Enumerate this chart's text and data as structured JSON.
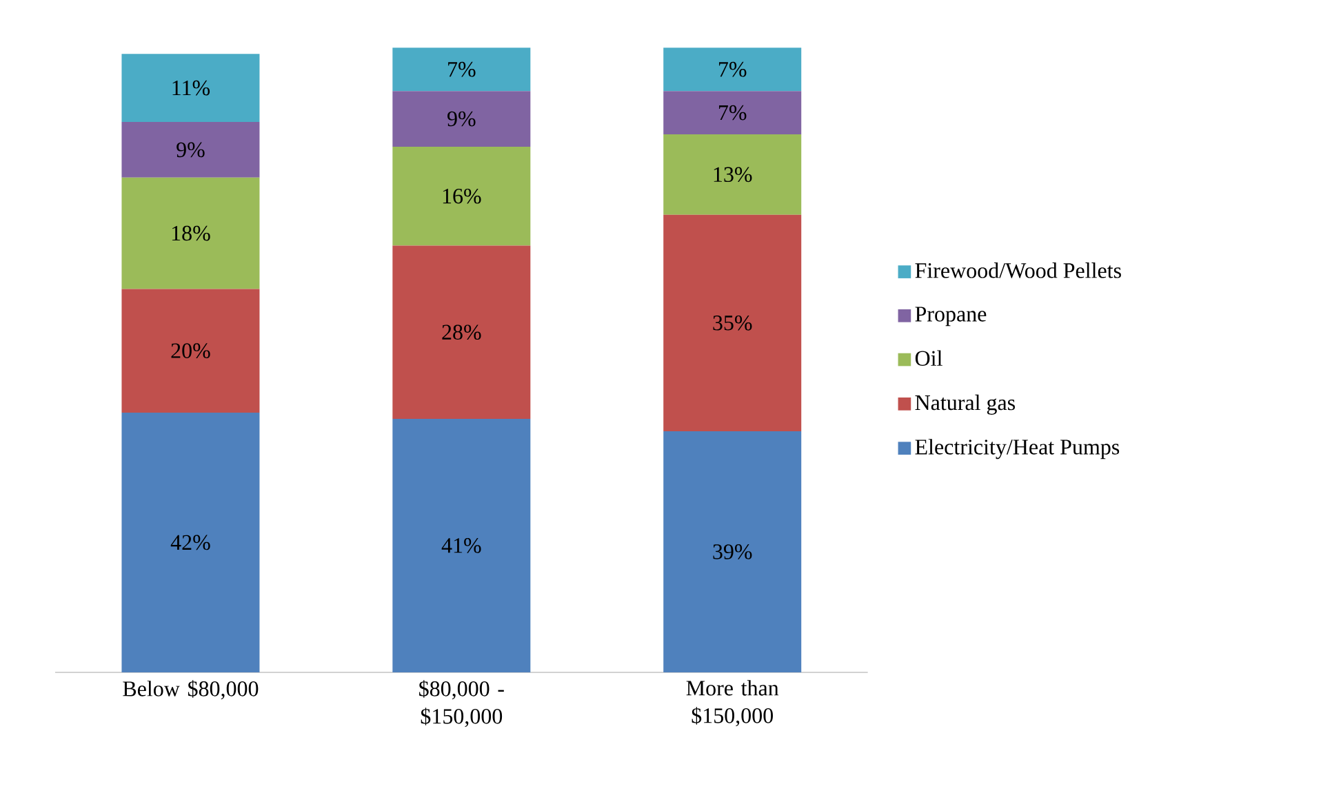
{
  "chart_data": {
    "type": "bar",
    "stacked": true,
    "categories": [
      "Below $80,000",
      "$80,000 - $150,000",
      "More than $150,000"
    ],
    "series": [
      {
        "name": "Electricity/Heat Pumps",
        "color": "#4f81bd",
        "values": [
          42,
          41,
          39
        ],
        "value_labels": [
          "42%",
          "41%",
          "39%"
        ]
      },
      {
        "name": "Natural gas",
        "color": "#c0504d",
        "values": [
          20,
          28,
          35
        ],
        "value_labels": [
          "20%",
          "28%",
          "35%"
        ]
      },
      {
        "name": "Oil",
        "color": "#9bbb59",
        "values": [
          18,
          16,
          13
        ],
        "value_labels": [
          "18%",
          "16%",
          "13%"
        ]
      },
      {
        "name": "Propane",
        "color": "#8064a2",
        "values": [
          9,
          9,
          7
        ],
        "value_labels": [
          "9%",
          "9%",
          "7%"
        ]
      },
      {
        "name": "Firewood/Wood Pellets",
        "color": "#4bacc6",
        "values": [
          11,
          7,
          7
        ],
        "value_labels": [
          "11%",
          "7%",
          "7%"
        ]
      }
    ],
    "legend": "right",
    "tick_labels": "x"
  }
}
